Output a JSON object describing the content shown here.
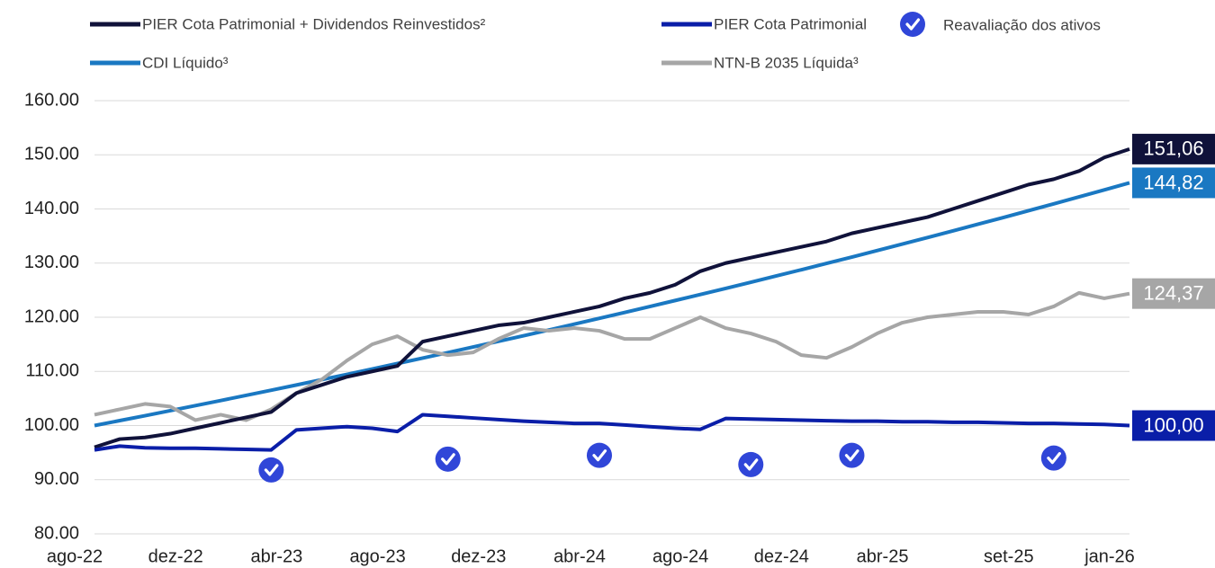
{
  "chart_data": {
    "type": "line",
    "categories": [
      "ago-22",
      null,
      null,
      null,
      "dez-22",
      null,
      null,
      null,
      "abr-23",
      null,
      null,
      null,
      "ago-23",
      null,
      null,
      null,
      "dez-23",
      null,
      null,
      null,
      "abr-24",
      null,
      null,
      null,
      "ago-24",
      null,
      null,
      null,
      "dez-24",
      null,
      null,
      null,
      "abr-25",
      null,
      null,
      null,
      null,
      "set-25",
      null,
      null,
      null,
      "jan-26"
    ],
    "ylim": [
      80,
      160
    ],
    "yticks": [
      {
        "value": 80,
        "label": "80.00"
      },
      {
        "value": 90,
        "label": "90.00"
      },
      {
        "value": 100,
        "label": "100.00"
      },
      {
        "value": 110,
        "label": "110.00"
      },
      {
        "value": 120,
        "label": "120.00"
      },
      {
        "value": 130,
        "label": "130.00"
      },
      {
        "value": 140,
        "label": "140.00"
      },
      {
        "value": 150,
        "label": "150.00"
      },
      {
        "value": 160,
        "label": "160.00"
      }
    ],
    "grid": true,
    "series": [
      {
        "name": "PIER Cota Patrimonial + Dividendos Reinvestidos²",
        "color": "#10123a",
        "end_label": "151,06",
        "values": [
          96,
          97.5,
          97.8,
          98.5,
          99.5,
          100.5,
          101.5,
          102.5,
          106,
          107.5,
          109,
          110,
          111,
          115.5,
          116.5,
          117.5,
          118.5,
          119,
          120,
          121,
          122,
          123.5,
          124.5,
          126,
          128.5,
          130,
          131,
          132,
          133,
          134,
          135.5,
          136.5,
          137.5,
          138.5,
          140,
          141.5,
          143,
          144.5,
          145.5,
          147,
          149.5,
          151.06
        ]
      },
      {
        "name": "PIER Cota Patrimonial",
        "color": "#0a1ea8",
        "end_label": "100,00",
        "values": [
          95.5,
          96.2,
          95.9,
          95.8,
          95.8,
          95.7,
          95.6,
          95.5,
          99.2,
          99.5,
          99.8,
          99.5,
          98.9,
          102,
          101.7,
          101.4,
          101.1,
          100.8,
          100.6,
          100.4,
          100.4,
          100.1,
          99.8,
          99.5,
          99.3,
          101.3,
          101.2,
          101.1,
          101,
          100.9,
          100.8,
          100.8,
          100.7,
          100.7,
          100.6,
          100.6,
          100.5,
          100.4,
          100.4,
          100.3,
          100.2,
          100
        ]
      },
      {
        "name": "Reavaliação dos ativos",
        "color": "#3046d8",
        "marker": "check",
        "values": [
          null,
          null,
          null,
          null,
          null,
          null,
          null,
          91.8,
          null,
          null,
          null,
          null,
          null,
          null,
          93.8,
          null,
          null,
          null,
          null,
          null,
          94.5,
          null,
          null,
          null,
          null,
          null,
          92.8,
          null,
          null,
          null,
          94.5,
          null,
          null,
          null,
          null,
          null,
          null,
          null,
          94,
          null,
          null,
          null
        ]
      },
      {
        "name": "CDI Líquido³",
        "color": "#1a78c2",
        "end_label": "144,82",
        "values": [
          100,
          100.91,
          101.82,
          102.75,
          103.68,
          104.62,
          105.57,
          106.53,
          107.49,
          108.47,
          109.45,
          110.45,
          111.45,
          112.46,
          113.48,
          114.51,
          115.55,
          116.59,
          117.65,
          118.72,
          119.8,
          120.88,
          121.98,
          123.09,
          124.2,
          125.33,
          126.47,
          127.62,
          128.77,
          129.94,
          131.12,
          132.31,
          133.51,
          134.72,
          135.95,
          137.18,
          138.42,
          139.68,
          140.95,
          142.23,
          143.52,
          144.82
        ]
      },
      {
        "name": "NTN-B 2035 Líquida³",
        "color": "#a6a6a6",
        "end_label": "124,37",
        "values": [
          102,
          103,
          104,
          103.5,
          101,
          102,
          101,
          103,
          106,
          108.5,
          112,
          115,
          116.5,
          114,
          113,
          113.5,
          116,
          118,
          117.5,
          118,
          117.5,
          116,
          116,
          118,
          120,
          118,
          117,
          115.5,
          113,
          112.5,
          114.5,
          117,
          119,
          120,
          120.5,
          121,
          121,
          120.5,
          122,
          124.5,
          123.5,
          124.37
        ]
      }
    ]
  }
}
